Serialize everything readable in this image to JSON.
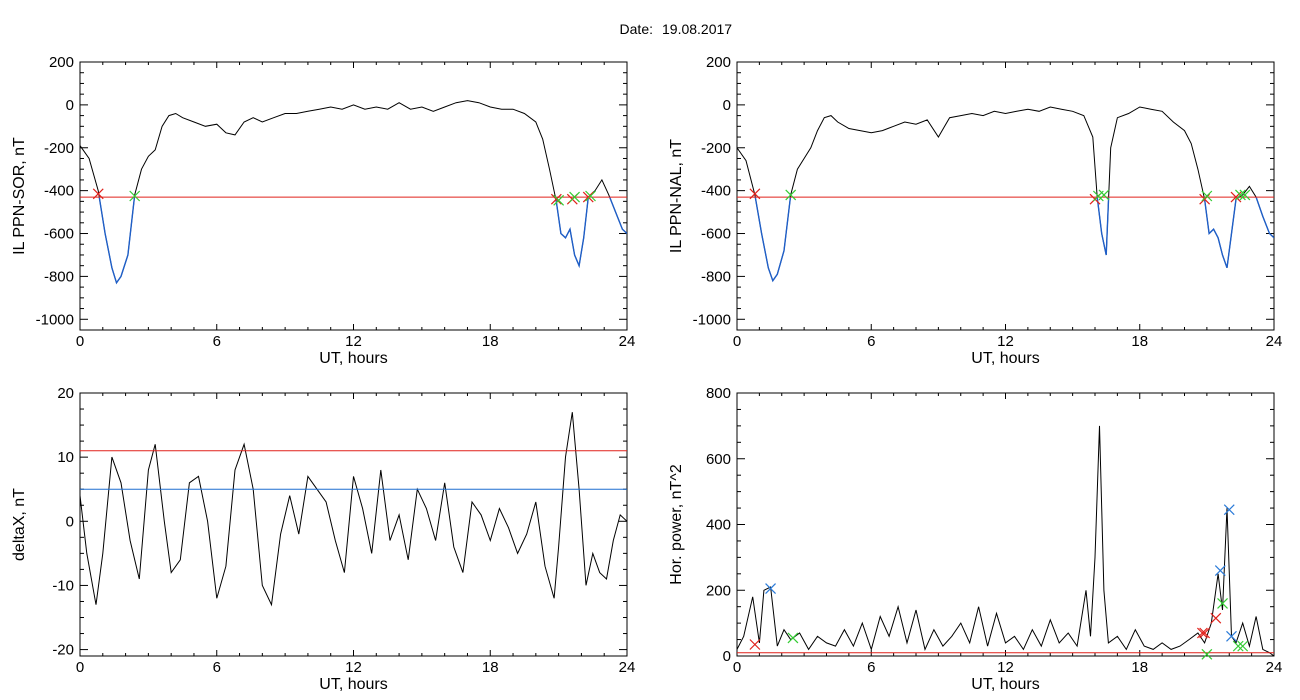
{
  "figure": {
    "title_label": "Date:",
    "title_date": "19.08.2017"
  },
  "colors": {
    "threshold_red": "#e0201a",
    "threshold_blue": "#1f6fd0",
    "signal_blue": "#1f5fc8",
    "marker_red": "#e0201a",
    "marker_green": "#33cc33",
    "marker_blue": "#2a7ad8",
    "curve": "#000000"
  },
  "chart_data": [
    {
      "id": "sor",
      "type": "line",
      "ylabel": "IL PPN-SOR, nT",
      "xlabel": "UT, hours",
      "xlim": [
        0,
        24
      ],
      "ylim": [
        -1050,
        200
      ],
      "xticks": [
        0,
        6,
        12,
        18,
        24
      ],
      "yticks": [
        200,
        0,
        -200,
        -400,
        -600,
        -800,
        -1000
      ],
      "thresholds": [
        {
          "value": -430,
          "color": "red"
        }
      ],
      "below_threshold_color": "blue",
      "series": [
        {
          "x": [
            0,
            0.4,
            0.8,
            1.1,
            1.4,
            1.6,
            1.8,
            2.1,
            2.4,
            2.7,
            3.0,
            3.3,
            3.6,
            3.9,
            4.2,
            4.5,
            5.0,
            5.5,
            6.0,
            6.4,
            6.8,
            7.2,
            7.6,
            8.0,
            8.5,
            9.0,
            9.5,
            10.0,
            10.5,
            11.0,
            11.5,
            12.0,
            12.5,
            13.0,
            13.5,
            14.0,
            14.5,
            15.0,
            15.5,
            16.0,
            16.5,
            17.0,
            17.5,
            18.0,
            18.5,
            19.0,
            19.5,
            20.0,
            20.3,
            20.6,
            20.9,
            21.1,
            21.3,
            21.5,
            21.7,
            21.9,
            22.1,
            22.3,
            22.6,
            22.9,
            23.2,
            23.5,
            23.8,
            24.0
          ],
          "y": [
            -190,
            -250,
            -400,
            -600,
            -760,
            -830,
            -800,
            -700,
            -420,
            -300,
            -240,
            -210,
            -100,
            -50,
            -40,
            -60,
            -80,
            -100,
            -90,
            -130,
            -140,
            -80,
            -60,
            -80,
            -60,
            -40,
            -40,
            -30,
            -20,
            -10,
            -20,
            0,
            -20,
            -10,
            -20,
            10,
            -20,
            -10,
            -30,
            -10,
            10,
            20,
            10,
            -10,
            -20,
            -20,
            -40,
            -80,
            -160,
            -300,
            -450,
            -600,
            -620,
            -580,
            -700,
            -750,
            -620,
            -430,
            -400,
            -350,
            -420,
            -500,
            -580,
            -600
          ]
        }
      ],
      "markers": [
        {
          "x": 0.8,
          "y": -415,
          "color": "red"
        },
        {
          "x": 2.4,
          "y": -425,
          "color": "green"
        },
        {
          "x": 20.9,
          "y": -440,
          "color": "red"
        },
        {
          "x": 21.0,
          "y": -445,
          "color": "green"
        },
        {
          "x": 21.6,
          "y": -440,
          "color": "red"
        },
        {
          "x": 21.7,
          "y": -430,
          "color": "green"
        },
        {
          "x": 22.3,
          "y": -430,
          "color": "red"
        },
        {
          "x": 22.4,
          "y": -425,
          "color": "green"
        }
      ]
    },
    {
      "id": "nal",
      "type": "line",
      "ylabel": "IL PPN-NAL, nT",
      "xlabel": "UT, hours",
      "xlim": [
        0,
        24
      ],
      "ylim": [
        -1050,
        200
      ],
      "xticks": [
        0,
        6,
        12,
        18,
        24
      ],
      "yticks": [
        200,
        0,
        -200,
        -400,
        -600,
        -800,
        -1000
      ],
      "thresholds": [
        {
          "value": -430,
          "color": "red"
        }
      ],
      "below_threshold_color": "blue",
      "series": [
        {
          "x": [
            0,
            0.4,
            0.8,
            1.1,
            1.4,
            1.6,
            1.8,
            2.1,
            2.4,
            2.7,
            3.0,
            3.3,
            3.6,
            3.9,
            4.2,
            4.5,
            5.0,
            5.5,
            6.0,
            6.5,
            7.0,
            7.5,
            8.0,
            8.5,
            9.0,
            9.5,
            10.0,
            10.5,
            11.0,
            11.5,
            12.0,
            12.5,
            13.0,
            13.5,
            14.0,
            14.5,
            15.0,
            15.5,
            15.9,
            16.1,
            16.3,
            16.5,
            16.7,
            17.0,
            17.5,
            18.0,
            18.5,
            19.0,
            19.5,
            20.0,
            20.3,
            20.6,
            20.9,
            21.1,
            21.3,
            21.5,
            21.7,
            21.9,
            22.1,
            22.3,
            22.6,
            22.9,
            23.2,
            23.5,
            23.8,
            24.0
          ],
          "y": [
            -200,
            -260,
            -420,
            -600,
            -760,
            -820,
            -790,
            -680,
            -420,
            -300,
            -250,
            -200,
            -120,
            -60,
            -50,
            -80,
            -110,
            -120,
            -130,
            -120,
            -100,
            -80,
            -90,
            -70,
            -150,
            -60,
            -50,
            -40,
            -50,
            -30,
            -40,
            -30,
            -20,
            -30,
            -10,
            -20,
            -30,
            -50,
            -150,
            -430,
            -600,
            -700,
            -200,
            -60,
            -40,
            -10,
            -20,
            -30,
            -80,
            -120,
            -180,
            -300,
            -440,
            -600,
            -580,
            -620,
            -700,
            -760,
            -600,
            -440,
            -420,
            -380,
            -430,
            -520,
            -600,
            -620
          ]
        }
      ],
      "markers": [
        {
          "x": 0.8,
          "y": -415,
          "color": "red"
        },
        {
          "x": 2.4,
          "y": -420,
          "color": "green"
        },
        {
          "x": 16.0,
          "y": -440,
          "color": "red"
        },
        {
          "x": 16.15,
          "y": -425,
          "color": "green"
        },
        {
          "x": 16.4,
          "y": -420,
          "color": "green"
        },
        {
          "x": 20.9,
          "y": -440,
          "color": "red"
        },
        {
          "x": 21.0,
          "y": -425,
          "color": "green"
        },
        {
          "x": 22.3,
          "y": -430,
          "color": "red"
        },
        {
          "x": 22.5,
          "y": -420,
          "color": "green"
        },
        {
          "x": 22.7,
          "y": -420,
          "color": "green"
        }
      ]
    },
    {
      "id": "deltax",
      "type": "line",
      "ylabel": "deltaX, nT",
      "xlabel": "UT, hours",
      "xlim": [
        0,
        24
      ],
      "ylim": [
        -21,
        20
      ],
      "xticks": [
        0,
        6,
        12,
        18,
        24
      ],
      "yticks": [
        20,
        10,
        0,
        -10,
        -20
      ],
      "thresholds": [
        {
          "value": 11,
          "color": "red"
        },
        {
          "value": 5,
          "color": "blue"
        }
      ],
      "series": [
        {
          "x": [
            0,
            0.3,
            0.7,
            1.0,
            1.4,
            1.8,
            2.2,
            2.6,
            3.0,
            3.3,
            3.7,
            4.0,
            4.4,
            4.8,
            5.2,
            5.6,
            6.0,
            6.4,
            6.8,
            7.2,
            7.6,
            8.0,
            8.4,
            8.8,
            9.2,
            9.6,
            10.0,
            10.4,
            10.8,
            11.2,
            11.6,
            12.0,
            12.4,
            12.8,
            13.2,
            13.6,
            14.0,
            14.4,
            14.8,
            15.2,
            15.6,
            16.0,
            16.4,
            16.8,
            17.2,
            17.6,
            18.0,
            18.4,
            18.8,
            19.2,
            19.6,
            20.0,
            20.4,
            20.8,
            21.0,
            21.3,
            21.6,
            21.9,
            22.2,
            22.5,
            22.8,
            23.1,
            23.4,
            23.7,
            24.0
          ],
          "y": [
            4,
            -5,
            -13,
            -5,
            10,
            6,
            -3,
            -9,
            8,
            12,
            0,
            -8,
            -6,
            6,
            7,
            0,
            -12,
            -7,
            8,
            12,
            5,
            -10,
            -13,
            -2,
            4,
            -2,
            7,
            5,
            3,
            -3,
            -8,
            7,
            2,
            -5,
            8,
            -3,
            1,
            -6,
            5,
            2,
            -3,
            6,
            -4,
            -8,
            3,
            1,
            -3,
            2,
            -1,
            -5,
            -2,
            3,
            -7,
            -12,
            -4,
            10,
            17,
            5,
            -10,
            -5,
            -8,
            -9,
            -3,
            1,
            0
          ]
        }
      ],
      "markers": []
    },
    {
      "id": "power",
      "type": "line",
      "ylabel": "Hor. power, nT^2",
      "xlabel": "UT, hours",
      "xlim": [
        0,
        24
      ],
      "ylim": [
        0,
        800
      ],
      "xticks": [
        0,
        6,
        12,
        18,
        24
      ],
      "yticks": [
        800,
        600,
        400,
        200,
        0
      ],
      "thresholds": [
        {
          "value": 10,
          "color": "red"
        }
      ],
      "series": [
        {
          "x": [
            0,
            0.3,
            0.7,
            1.0,
            1.2,
            1.5,
            1.8,
            2.1,
            2.4,
            2.8,
            3.2,
            3.6,
            4.0,
            4.4,
            4.8,
            5.2,
            5.6,
            6.0,
            6.4,
            6.8,
            7.2,
            7.6,
            8.0,
            8.4,
            8.8,
            9.2,
            9.6,
            10.0,
            10.4,
            10.8,
            11.2,
            11.6,
            12.0,
            12.4,
            12.8,
            13.2,
            13.6,
            14.0,
            14.4,
            14.8,
            15.2,
            15.6,
            15.8,
            16.0,
            16.2,
            16.4,
            16.6,
            17.0,
            17.4,
            17.8,
            18.2,
            18.6,
            19.0,
            19.4,
            19.8,
            20.2,
            20.6,
            20.9,
            21.2,
            21.5,
            21.7,
            21.9,
            22.1,
            22.3,
            22.6,
            22.9,
            23.2,
            23.5,
            23.8,
            24.0
          ],
          "y": [
            20,
            60,
            180,
            40,
            200,
            210,
            30,
            80,
            50,
            70,
            20,
            60,
            40,
            30,
            80,
            30,
            100,
            20,
            120,
            60,
            150,
            40,
            140,
            20,
            80,
            30,
            60,
            100,
            40,
            150,
            30,
            130,
            40,
            60,
            20,
            80,
            30,
            110,
            40,
            70,
            30,
            200,
            60,
            300,
            700,
            200,
            40,
            60,
            20,
            80,
            30,
            20,
            40,
            20,
            30,
            50,
            70,
            40,
            100,
            250,
            140,
            450,
            60,
            40,
            100,
            30,
            120,
            20,
            10,
            0
          ]
        }
      ],
      "markers": [
        {
          "x": 0.8,
          "y": 35,
          "color": "red"
        },
        {
          "x": 1.5,
          "y": 205,
          "color": "blue"
        },
        {
          "x": 2.5,
          "y": 55,
          "color": "green"
        },
        {
          "x": 20.8,
          "y": 70,
          "color": "red"
        },
        {
          "x": 20.9,
          "y": 70,
          "color": "red"
        },
        {
          "x": 21.0,
          "y": 5,
          "color": "green"
        },
        {
          "x": 21.4,
          "y": 115,
          "color": "red"
        },
        {
          "x": 21.6,
          "y": 260,
          "color": "blue"
        },
        {
          "x": 21.7,
          "y": 160,
          "color": "green"
        },
        {
          "x": 22.0,
          "y": 445,
          "color": "blue"
        },
        {
          "x": 22.1,
          "y": 60,
          "color": "blue"
        },
        {
          "x": 22.4,
          "y": 30,
          "color": "green"
        },
        {
          "x": 22.6,
          "y": 30,
          "color": "green"
        }
      ]
    }
  ]
}
